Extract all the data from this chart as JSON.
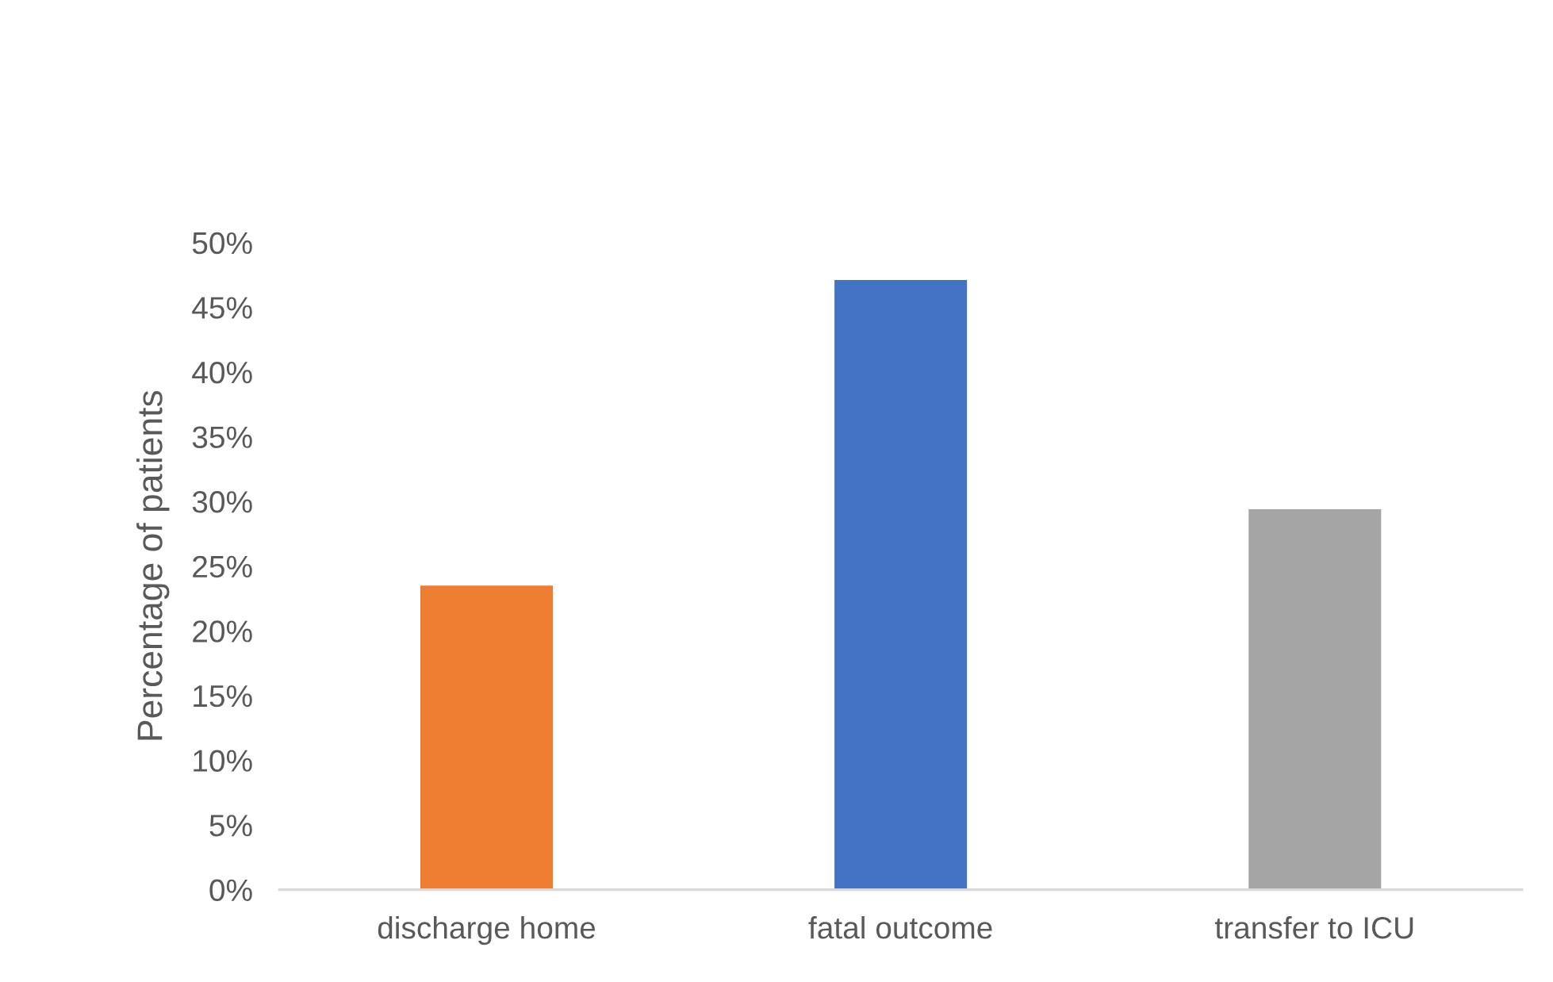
{
  "chart_data": {
    "type": "bar",
    "ylabel": "Percentage of patients",
    "categories": [
      "discharge home",
      "fatal outcome",
      "transfer to ICU"
    ],
    "values": [
      23.5,
      47.1,
      29.4
    ],
    "colors": [
      "#ed7d31",
      "#4472c4",
      "#a5a5a5"
    ],
    "ylim": [
      0,
      50
    ],
    "yticks": [
      {
        "value": 0,
        "label": "0%"
      },
      {
        "value": 5,
        "label": "5%"
      },
      {
        "value": 10,
        "label": "10%"
      },
      {
        "value": 15,
        "label": "15%"
      },
      {
        "value": 20,
        "label": "20%"
      },
      {
        "value": 25,
        "label": "25%"
      },
      {
        "value": 30,
        "label": "30%"
      },
      {
        "value": 35,
        "label": "35%"
      },
      {
        "value": 40,
        "label": "40%"
      },
      {
        "value": 45,
        "label": "45%"
      },
      {
        "value": 50,
        "label": "50%"
      }
    ],
    "grid": false,
    "legend": false
  }
}
